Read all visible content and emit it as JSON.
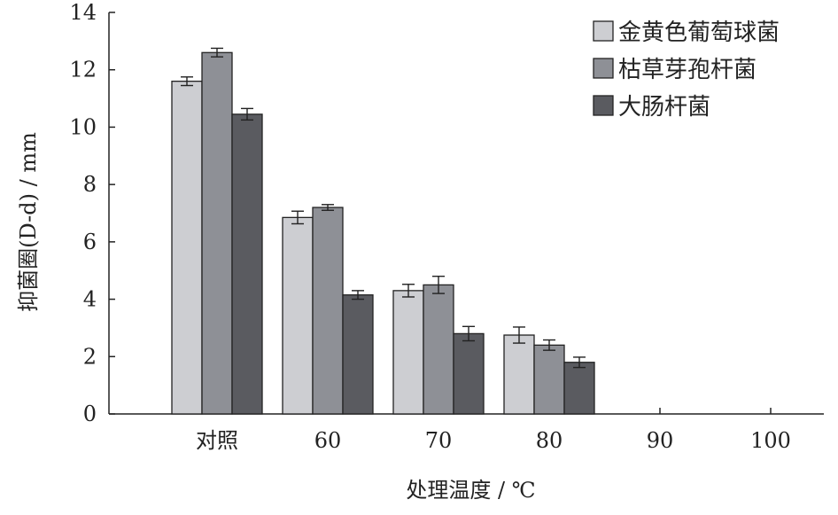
{
  "chart_data": {
    "type": "bar",
    "categories": [
      "对照",
      "60",
      "70",
      "80",
      "90",
      "100"
    ],
    "series": [
      {
        "name": "金黄色葡萄球菌",
        "values": [
          11.6,
          6.85,
          4.3,
          2.75,
          0,
          0
        ],
        "errors": [
          0.15,
          0.22,
          0.22,
          0.28,
          0,
          0
        ],
        "color": "#cdced2"
      },
      {
        "name": "枯草芽孢杆菌",
        "values": [
          12.6,
          7.2,
          4.5,
          2.4,
          0,
          0
        ],
        "errors": [
          0.15,
          0.1,
          0.3,
          0.18,
          0,
          0
        ],
        "color": "#8e9096"
      },
      {
        "name": "大肠杆菌",
        "values": [
          10.45,
          4.15,
          2.8,
          1.8,
          0,
          0
        ],
        "errors": [
          0.2,
          0.15,
          0.25,
          0.18,
          0,
          0
        ],
        "color": "#5a5b60"
      }
    ],
    "xlabel": "处理温度 / ℃",
    "ylabel": "抑菌圈(D-d) / mm",
    "ylim": [
      0,
      14
    ],
    "yticks": [
      0,
      2,
      4,
      6,
      8,
      10,
      12,
      14
    ],
    "grid": false,
    "legend_position": "top-right"
  }
}
